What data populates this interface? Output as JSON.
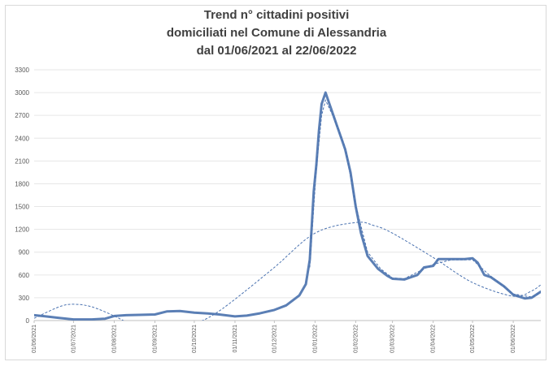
{
  "chart_data": {
    "type": "line",
    "title": [
      "Trend n° cittadini positivi",
      "domiciliati nel Comune di Alessandria",
      "dal 01/06/2021 al 22/06/2022"
    ],
    "xlabel": "",
    "ylabel": "",
    "ylim": [
      0,
      3300
    ],
    "yticks": [
      0,
      300,
      600,
      900,
      1200,
      1500,
      1800,
      2100,
      2400,
      2700,
      3000,
      3300
    ],
    "xlim": [
      "01/06/2021",
      "22/06/2022"
    ],
    "x_tick_labels": [
      "01/06/2021",
      "01/07/2021",
      "01/08/2021",
      "01/09/2021",
      "01/10/2021",
      "01/11/2021",
      "01/12/2021",
      "01/01/2022",
      "01/02/2022",
      "01/03/2022",
      "01/04/2022",
      "01/05/2022",
      "01/06/2022"
    ],
    "grid": "horizontal",
    "colors": {
      "series": "#5b7fb5",
      "trend": "#4a72b0",
      "grid": "#e6e6e6",
      "axis": "#bfbfbf"
    },
    "series": [
      {
        "style": "solid-thick",
        "points": [
          [
            "01/06/2021",
            70
          ],
          [
            "10/06/2021",
            55
          ],
          [
            "20/06/2021",
            35
          ],
          [
            "01/07/2021",
            15
          ],
          [
            "15/07/2021",
            15
          ],
          [
            "25/07/2021",
            25
          ],
          [
            "01/08/2021",
            60
          ],
          [
            "10/08/2021",
            70
          ],
          [
            "20/08/2021",
            75
          ],
          [
            "01/09/2021",
            80
          ],
          [
            "10/09/2021",
            120
          ],
          [
            "20/09/2021",
            125
          ],
          [
            "01/10/2021",
            105
          ],
          [
            "10/10/2021",
            95
          ],
          [
            "20/10/2021",
            80
          ],
          [
            "01/11/2021",
            55
          ],
          [
            "10/11/2021",
            65
          ],
          [
            "20/11/2021",
            95
          ],
          [
            "01/12/2021",
            140
          ],
          [
            "10/12/2021",
            200
          ],
          [
            "20/12/2021",
            330
          ],
          [
            "25/12/2021",
            480
          ],
          [
            "28/12/2021",
            800
          ],
          [
            "31/12/2021",
            1700
          ],
          [
            "02/01/2022",
            2050
          ],
          [
            "04/01/2022",
            2500
          ],
          [
            "06/01/2022",
            2850
          ],
          [
            "09/01/2022",
            3000
          ],
          [
            "12/01/2022",
            2850
          ],
          [
            "15/01/2022",
            2700
          ],
          [
            "18/01/2022",
            2550
          ],
          [
            "21/01/2022",
            2400
          ],
          [
            "24/01/2022",
            2250
          ],
          [
            "28/01/2022",
            1950
          ],
          [
            "01/02/2022",
            1500
          ],
          [
            "05/02/2022",
            1150
          ],
          [
            "10/02/2022",
            850
          ],
          [
            "18/02/2022",
            680
          ],
          [
            "25/02/2022",
            590
          ],
          [
            "01/03/2022",
            550
          ],
          [
            "10/03/2022",
            540
          ],
          [
            "20/03/2022",
            600
          ],
          [
            "25/03/2022",
            700
          ],
          [
            "01/04/2022",
            720
          ],
          [
            "05/04/2022",
            810
          ],
          [
            "15/04/2022",
            810
          ],
          [
            "25/04/2022",
            810
          ],
          [
            "01/05/2022",
            820
          ],
          [
            "05/05/2022",
            760
          ],
          [
            "10/05/2022",
            600
          ],
          [
            "15/05/2022",
            570
          ],
          [
            "25/05/2022",
            450
          ],
          [
            "01/06/2022",
            340
          ],
          [
            "10/06/2022",
            290
          ],
          [
            "15/06/2022",
            300
          ],
          [
            "22/06/2022",
            380
          ]
        ]
      },
      {
        "style": "dashed-moving-average",
        "points": [
          [
            "28/12/2021",
            700
          ],
          [
            "02/01/2022",
            2000
          ],
          [
            "06/01/2022",
            2700
          ],
          [
            "09/01/2022",
            2900
          ],
          [
            "15/01/2022",
            2680
          ],
          [
            "24/01/2022",
            2280
          ],
          [
            "01/02/2022",
            1520
          ],
          [
            "10/02/2022",
            900
          ],
          [
            "20/02/2022",
            680
          ],
          [
            "01/03/2022",
            560
          ],
          [
            "10/03/2022",
            550
          ],
          [
            "01/04/2022",
            740
          ],
          [
            "15/04/2022",
            800
          ],
          [
            "01/05/2022",
            800
          ],
          [
            "15/05/2022",
            580
          ],
          [
            "01/06/2022",
            350
          ],
          [
            "15/06/2022",
            310
          ],
          [
            "22/06/2022",
            370
          ]
        ]
      },
      {
        "style": "dashed-polynomial-trend",
        "points": [
          [
            "01/06/2021",
            30
          ],
          [
            "20/06/2021",
            180
          ],
          [
            "01/07/2021",
            215
          ],
          [
            "15/07/2021",
            180
          ],
          [
            "01/08/2021",
            60
          ],
          [
            "15/08/2021",
            -60
          ],
          [
            "01/09/2021",
            -160
          ],
          [
            "15/09/2021",
            -180
          ],
          [
            "01/10/2021",
            -50
          ],
          [
            "15/10/2021",
            70
          ],
          [
            "01/11/2021",
            280
          ],
          [
            "01/12/2021",
            700
          ],
          [
            "01/01/2022",
            1150
          ],
          [
            "01/02/2022",
            1290
          ],
          [
            "15/02/2022",
            1250
          ],
          [
            "01/03/2022",
            1150
          ],
          [
            "01/04/2022",
            830
          ],
          [
            "01/05/2022",
            500
          ],
          [
            "01/06/2022",
            320
          ],
          [
            "15/06/2022",
            390
          ],
          [
            "22/06/2022",
            470
          ]
        ]
      }
    ]
  }
}
